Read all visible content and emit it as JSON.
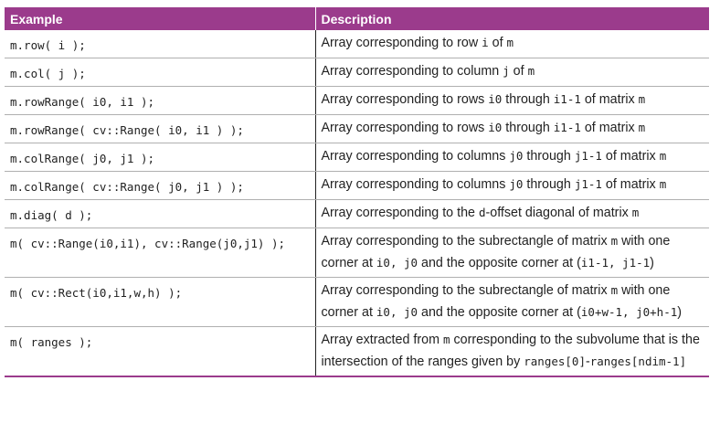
{
  "headers": {
    "example": "Example",
    "description": "Description"
  },
  "rows": [
    {
      "example": "m.row( i );",
      "desc": [
        [
          "t",
          "Array corresponding to row "
        ],
        [
          "c",
          "i"
        ],
        [
          "t",
          " of "
        ],
        [
          "c",
          "m"
        ]
      ]
    },
    {
      "example": "m.col( j );",
      "desc": [
        [
          "t",
          "Array corresponding to column "
        ],
        [
          "c",
          "j"
        ],
        [
          "t",
          " of "
        ],
        [
          "c",
          "m"
        ]
      ]
    },
    {
      "example": "m.rowRange( i0, i1 );",
      "desc": [
        [
          "t",
          "Array corresponding to rows "
        ],
        [
          "c",
          "i0"
        ],
        [
          "t",
          " through "
        ],
        [
          "c",
          "i1-1"
        ],
        [
          "t",
          " of matrix "
        ],
        [
          "c",
          "m"
        ]
      ]
    },
    {
      "example": "m.rowRange( cv::Range( i0, i1 ) );",
      "desc": [
        [
          "t",
          "Array corresponding to rows "
        ],
        [
          "c",
          "i0"
        ],
        [
          "t",
          " through "
        ],
        [
          "c",
          "i1-1"
        ],
        [
          "t",
          " of matrix "
        ],
        [
          "c",
          "m"
        ]
      ]
    },
    {
      "example": "m.colRange( j0, j1 );",
      "desc": [
        [
          "t",
          "Array corresponding to columns "
        ],
        [
          "c",
          "j0"
        ],
        [
          "t",
          " through "
        ],
        [
          "c",
          "j1-1"
        ],
        [
          "t",
          " of matrix "
        ],
        [
          "c",
          "m"
        ]
      ]
    },
    {
      "example": "m.colRange( cv::Range( j0, j1 ) );",
      "desc": [
        [
          "t",
          "Array corresponding to columns "
        ],
        [
          "c",
          "j0"
        ],
        [
          "t",
          " through "
        ],
        [
          "c",
          "j1-1"
        ],
        [
          "t",
          " of matrix "
        ],
        [
          "c",
          "m"
        ]
      ]
    },
    {
      "example": "m.diag( d );",
      "desc": [
        [
          "t",
          "Array corresponding to the "
        ],
        [
          "c",
          "d"
        ],
        [
          "t",
          "-offset diagonal of matrix "
        ],
        [
          "c",
          "m"
        ]
      ]
    },
    {
      "example": "m( cv::Range(i0,i1), cv::Range(j0,j1) );",
      "desc": [
        [
          "t",
          "Array corresponding to the subrectangle of matrix "
        ],
        [
          "c",
          "m"
        ],
        [
          "t",
          " with one corner at "
        ],
        [
          "c",
          "i0, j0"
        ],
        [
          "t",
          " and the opposite corner at ("
        ],
        [
          "c",
          "i1-1, j1-1"
        ],
        [
          "t",
          ")"
        ]
      ]
    },
    {
      "example": "m( cv::Rect(i0,i1,w,h) );",
      "desc": [
        [
          "t",
          "Array corresponding to the subrectangle of matrix "
        ],
        [
          "c",
          "m"
        ],
        [
          "t",
          " with one corner at "
        ],
        [
          "c",
          "i0, j0"
        ],
        [
          "t",
          " and the opposite corner at ("
        ],
        [
          "c",
          "i0+w-1, j0+h-1"
        ],
        [
          "t",
          ")"
        ]
      ]
    },
    {
      "example": "m( ranges );",
      "desc": [
        [
          "t",
          "Array extracted from "
        ],
        [
          "c",
          "m"
        ],
        [
          "t",
          " corresponding to the subvolume that is the intersection of the ranges given by "
        ],
        [
          "c",
          "ranges[0]"
        ],
        [
          "t",
          "-"
        ],
        [
          "c",
          "ranges[ndim-1]"
        ]
      ]
    }
  ]
}
